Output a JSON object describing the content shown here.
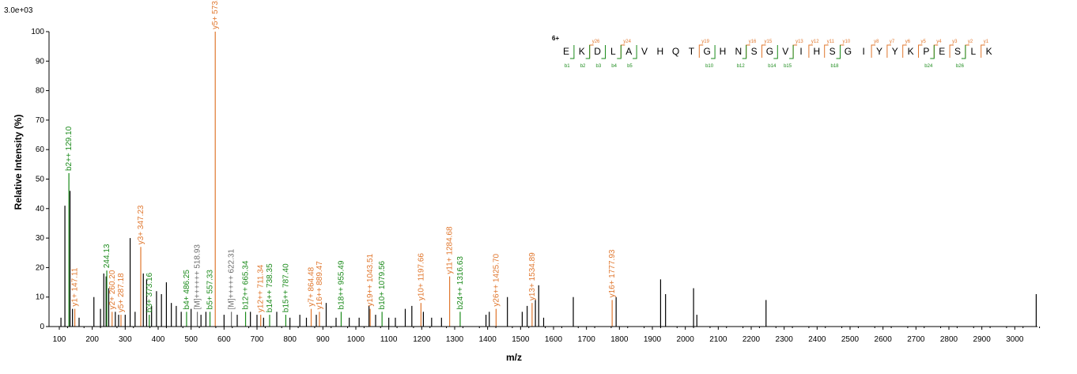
{
  "chart_data": {
    "type": "bar",
    "title": "",
    "scale_label": "3.0e+03",
    "xlabel": "m/z",
    "ylabel": "Relative   Intensity (%)",
    "xlim": [
      100,
      3100
    ],
    "ylim": [
      0,
      100
    ],
    "xticks": [
      100,
      200,
      300,
      400,
      500,
      600,
      700,
      800,
      900,
      1000,
      1100,
      1200,
      1300,
      1400,
      1500,
      1600,
      1700,
      1800,
      1900,
      2000,
      2100,
      2200,
      2300,
      2400,
      2500,
      2600,
      2700,
      2800,
      2900,
      3000
    ],
    "yticks": [
      0,
      10,
      20,
      30,
      40,
      50,
      60,
      70,
      80,
      90,
      100
    ],
    "colors": {
      "y": "#e0772e",
      "b": "#1a8a1a",
      "other": "#6e6e6e",
      "noise": "#000000",
      "charge": "#00008b"
    },
    "annotated_peaks": [
      {
        "mz": 129.1,
        "intensity": 52,
        "ion": "b",
        "label": "b2++ 129.10"
      },
      {
        "mz": 132.5,
        "intensity": 46,
        "ion": "noise",
        "label": ""
      },
      {
        "mz": 147.11,
        "intensity": 6,
        "ion": "y",
        "label": "y1+ 147.11"
      },
      {
        "mz": 244.13,
        "intensity": 19,
        "ion": "b",
        "label": "244.13"
      },
      {
        "mz": 260.2,
        "intensity": 5,
        "ion": "y",
        "label": "y2+ 260.20"
      },
      {
        "mz": 287.18,
        "intensity": 4,
        "ion": "y",
        "label": "y5+ 287.18"
      },
      {
        "mz": 347.23,
        "intensity": 27,
        "ion": "y",
        "label": "y3+ 347.23"
      },
      {
        "mz": 373.16,
        "intensity": 4,
        "ion": "b",
        "label": "b3+ 373.16"
      },
      {
        "mz": 486.25,
        "intensity": 5,
        "ion": "b",
        "label": "b4+ 486.25"
      },
      {
        "mz": 518.93,
        "intensity": 5,
        "ion": "other",
        "label": "[M]++++++ 518.93"
      },
      {
        "mz": 557.33,
        "intensity": 5,
        "ion": "b",
        "label": "b5+ 557.33"
      },
      {
        "mz": 573.3,
        "intensity": 100,
        "ion": "y",
        "label": "y5+ 573.3"
      },
      {
        "mz": 622.31,
        "intensity": 5,
        "ion": "other",
        "label": "[M]+++++ 622.31"
      },
      {
        "mz": 665.34,
        "intensity": 5,
        "ion": "b",
        "label": "b12++ 665.34"
      },
      {
        "mz": 711.34,
        "intensity": 4,
        "ion": "y",
        "label": "y12++ 711.34"
      },
      {
        "mz": 738.35,
        "intensity": 4,
        "ion": "b",
        "label": "b14++ 738.35"
      },
      {
        "mz": 787.4,
        "intensity": 4,
        "ion": "b",
        "label": "b15++ 787.40"
      },
      {
        "mz": 864.48,
        "intensity": 6,
        "ion": "y",
        "label": "y7+ 864.48"
      },
      {
        "mz": 889.47,
        "intensity": 5,
        "ion": "y",
        "label": "y16++ 889.47"
      },
      {
        "mz": 955.49,
        "intensity": 5,
        "ion": "b",
        "label": "b18++ 955.49"
      },
      {
        "mz": 1043.51,
        "intensity": 6,
        "ion": "y",
        "label": "y19++ 1043.51"
      },
      {
        "mz": 1079.56,
        "intensity": 5,
        "ion": "b",
        "label": "b10+ 1079.56"
      },
      {
        "mz": 1197.66,
        "intensity": 8,
        "ion": "y",
        "label": "y10+ 1197.66"
      },
      {
        "mz": 1284.68,
        "intensity": 17,
        "ion": "y",
        "label": "y11+ 1284.68"
      },
      {
        "mz": 1316.63,
        "intensity": 5,
        "ion": "b",
        "label": "b24++ 1316.63"
      },
      {
        "mz": 1425.7,
        "intensity": 6,
        "ion": "y",
        "label": "y26++ 1425.70"
      },
      {
        "mz": 1534.89,
        "intensity": 8,
        "ion": "y",
        "label": "y13+ 1534.89"
      },
      {
        "mz": 1777.93,
        "intensity": 9,
        "ion": "y",
        "label": "y16+ 1777.93"
      }
    ],
    "noise_peaks": [
      [
        105,
        3
      ],
      [
        117,
        41
      ],
      [
        140,
        6
      ],
      [
        160,
        3
      ],
      [
        205,
        10
      ],
      [
        225,
        6
      ],
      [
        235,
        18
      ],
      [
        242,
        17
      ],
      [
        250,
        13
      ],
      [
        270,
        5
      ],
      [
        280,
        4
      ],
      [
        300,
        4
      ],
      [
        315,
        30
      ],
      [
        330,
        5
      ],
      [
        355,
        18
      ],
      [
        365,
        16
      ],
      [
        380,
        7
      ],
      [
        395,
        12
      ],
      [
        410,
        11
      ],
      [
        425,
        15
      ],
      [
        440,
        8
      ],
      [
        455,
        7
      ],
      [
        470,
        5
      ],
      [
        500,
        6
      ],
      [
        530,
        4
      ],
      [
        545,
        5
      ],
      [
        600,
        4
      ],
      [
        640,
        4
      ],
      [
        680,
        5
      ],
      [
        700,
        4
      ],
      [
        720,
        3
      ],
      [
        760,
        5
      ],
      [
        800,
        3
      ],
      [
        830,
        4
      ],
      [
        850,
        3
      ],
      [
        880,
        4
      ],
      [
        910,
        8
      ],
      [
        940,
        3
      ],
      [
        980,
        3
      ],
      [
        1010,
        3
      ],
      [
        1040,
        7
      ],
      [
        1060,
        4
      ],
      [
        1100,
        3
      ],
      [
        1120,
        3
      ],
      [
        1150,
        6
      ],
      [
        1170,
        7
      ],
      [
        1205,
        5
      ],
      [
        1230,
        3
      ],
      [
        1260,
        3
      ],
      [
        1395,
        4
      ],
      [
        1405,
        5
      ],
      [
        1460,
        10
      ],
      [
        1505,
        5
      ],
      [
        1520,
        7
      ],
      [
        1545,
        9
      ],
      [
        1555,
        14
      ],
      [
        1570,
        3
      ],
      [
        1660,
        10
      ],
      [
        1790,
        10
      ],
      [
        1925,
        16
      ],
      [
        1940,
        11
      ],
      [
        2025,
        13
      ],
      [
        2035,
        4
      ],
      [
        2245,
        9
      ],
      [
        3065,
        11
      ]
    ],
    "peptide": {
      "charge": "6+",
      "sequence": [
        "E",
        "K",
        "D",
        "L",
        "A",
        "V",
        "H",
        "Q",
        "T",
        "G",
        "H",
        "N",
        "S",
        "G",
        "V",
        "I",
        "H",
        "S",
        "G",
        "I",
        "Y",
        "Y",
        "K",
        "P",
        "E",
        "S",
        "L",
        "K"
      ],
      "y_ions": [
        {
          "after": 2,
          "label": "y26"
        },
        {
          "after": 4,
          "label": "y24"
        },
        {
          "after": 9,
          "label": "y19"
        },
        {
          "after": 12,
          "label": "y16"
        },
        {
          "after": 13,
          "label": "y15"
        },
        {
          "after": 15,
          "label": "y13"
        },
        {
          "after": 16,
          "label": "y12"
        },
        {
          "after": 17,
          "label": "y11"
        },
        {
          "after": 18,
          "label": "y10"
        },
        {
          "after": 20,
          "label": "y8"
        },
        {
          "after": 21,
          "label": "y7"
        },
        {
          "after": 22,
          "label": "y6"
        },
        {
          "after": 23,
          "label": "y5"
        },
        {
          "after": 24,
          "label": "y4"
        },
        {
          "after": 25,
          "label": "y3"
        },
        {
          "after": 26,
          "label": "y2"
        },
        {
          "after": 27,
          "label": "y1"
        }
      ],
      "b_ions": [
        {
          "after": 1,
          "label": "b1"
        },
        {
          "after": 2,
          "label": "b2"
        },
        {
          "after": 3,
          "label": "b3"
        },
        {
          "after": 4,
          "label": "b4"
        },
        {
          "after": 5,
          "label": "b5"
        },
        {
          "after": 10,
          "label": "b10"
        },
        {
          "after": 12,
          "label": "b12"
        },
        {
          "after": 14,
          "label": "b14"
        },
        {
          "after": 15,
          "label": "b15"
        },
        {
          "after": 18,
          "label": "b18"
        },
        {
          "after": 24,
          "label": "b24"
        },
        {
          "after": 26,
          "label": "b26"
        }
      ]
    }
  }
}
